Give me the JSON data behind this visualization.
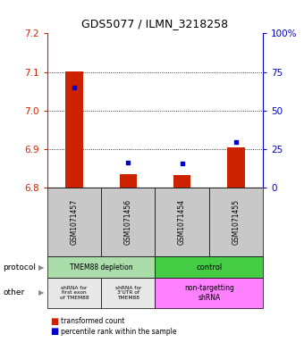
{
  "title": "GDS5077 / ILMN_3218258",
  "samples": [
    "GSM1071457",
    "GSM1071456",
    "GSM1071454",
    "GSM1071455"
  ],
  "red_values": [
    7.102,
    6.835,
    6.833,
    6.905
  ],
  "blue_values": [
    7.06,
    6.865,
    6.862,
    6.918
  ],
  "ylim": [
    6.8,
    7.2
  ],
  "yticks": [
    6.8,
    6.9,
    7.0,
    7.1,
    7.2
  ],
  "right_ytick_vals": [
    6.8,
    6.9,
    7.0,
    7.1,
    7.2
  ],
  "right_ytick_labels": [
    "0",
    "25",
    "50",
    "75",
    "100%"
  ],
  "bar_base": 6.8,
  "left_color": "#CC2200",
  "right_color": "#0000CC",
  "sample_box_color": "#C8C8C8",
  "protocol_depletion_color": "#AADDAA",
  "protocol_control_color": "#44CC44",
  "other_light_color": "#E8E8E8",
  "other_pink_color": "#FF80FF",
  "legend_red": "transformed count",
  "legend_blue": "percentile rank within the sample",
  "grid_dotted_ticks": [
    6.9,
    7.0,
    7.1
  ]
}
